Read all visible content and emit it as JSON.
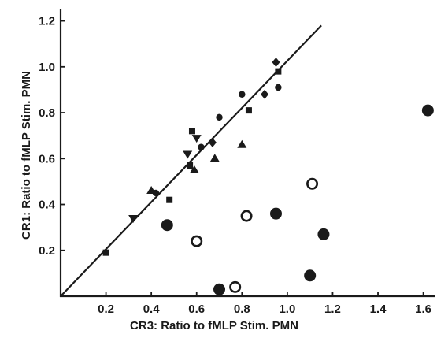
{
  "chart_data": {
    "type": "scatter",
    "title": "",
    "xlabel": "CR3: Ratio to fMLP Stim. PMN",
    "ylabel": "CR1: Ratio to fMLP Stim. PMN",
    "xlim": [
      0,
      1.65
    ],
    "ylim": [
      0,
      1.25
    ],
    "xticks": [
      "0.2",
      "0.4",
      "0.6",
      "0.8",
      "1.0",
      "1.2",
      "1.4",
      "1.6"
    ],
    "yticks": [
      "0.2",
      "0.4",
      "0.6",
      "0.8",
      "1.0",
      "1.2"
    ],
    "grid": false,
    "reference_line": {
      "style": "identity",
      "from": [
        0,
        0
      ],
      "to": [
        1.15,
        1.18
      ]
    },
    "colors": {
      "ink": "#1a1a1a",
      "background": "#ffffff"
    },
    "series": [
      {
        "marker": "square",
        "points": [
          [
            0.2,
            0.19
          ],
          [
            0.48,
            0.42
          ],
          [
            0.57,
            0.57
          ],
          [
            0.58,
            0.72
          ],
          [
            0.83,
            0.81
          ],
          [
            0.96,
            0.98
          ]
        ]
      },
      {
        "marker": "triangle-down",
        "points": [
          [
            0.32,
            0.34
          ],
          [
            0.56,
            0.62
          ],
          [
            0.6,
            0.69
          ]
        ]
      },
      {
        "marker": "triangle-up",
        "points": [
          [
            0.4,
            0.46
          ],
          [
            0.59,
            0.55
          ],
          [
            0.68,
            0.6
          ],
          [
            0.8,
            0.66
          ]
        ]
      },
      {
        "marker": "small-circle",
        "points": [
          [
            0.42,
            0.45
          ],
          [
            0.62,
            0.65
          ],
          [
            0.7,
            0.78
          ],
          [
            0.8,
            0.88
          ],
          [
            0.96,
            0.91
          ]
        ]
      },
      {
        "marker": "diamond",
        "points": [
          [
            0.67,
            0.67
          ],
          [
            0.9,
            0.88
          ],
          [
            0.95,
            1.02
          ]
        ]
      },
      {
        "marker": "large-filled-circle",
        "points": [
          [
            0.47,
            0.31
          ],
          [
            0.7,
            0.03
          ],
          [
            0.95,
            0.36
          ],
          [
            1.1,
            0.09
          ],
          [
            1.16,
            0.27
          ],
          [
            1.62,
            0.81
          ]
        ]
      },
      {
        "marker": "large-open-circle",
        "points": [
          [
            0.6,
            0.24
          ],
          [
            0.77,
            0.04
          ],
          [
            0.82,
            0.35
          ],
          [
            1.11,
            0.49
          ]
        ]
      }
    ]
  }
}
